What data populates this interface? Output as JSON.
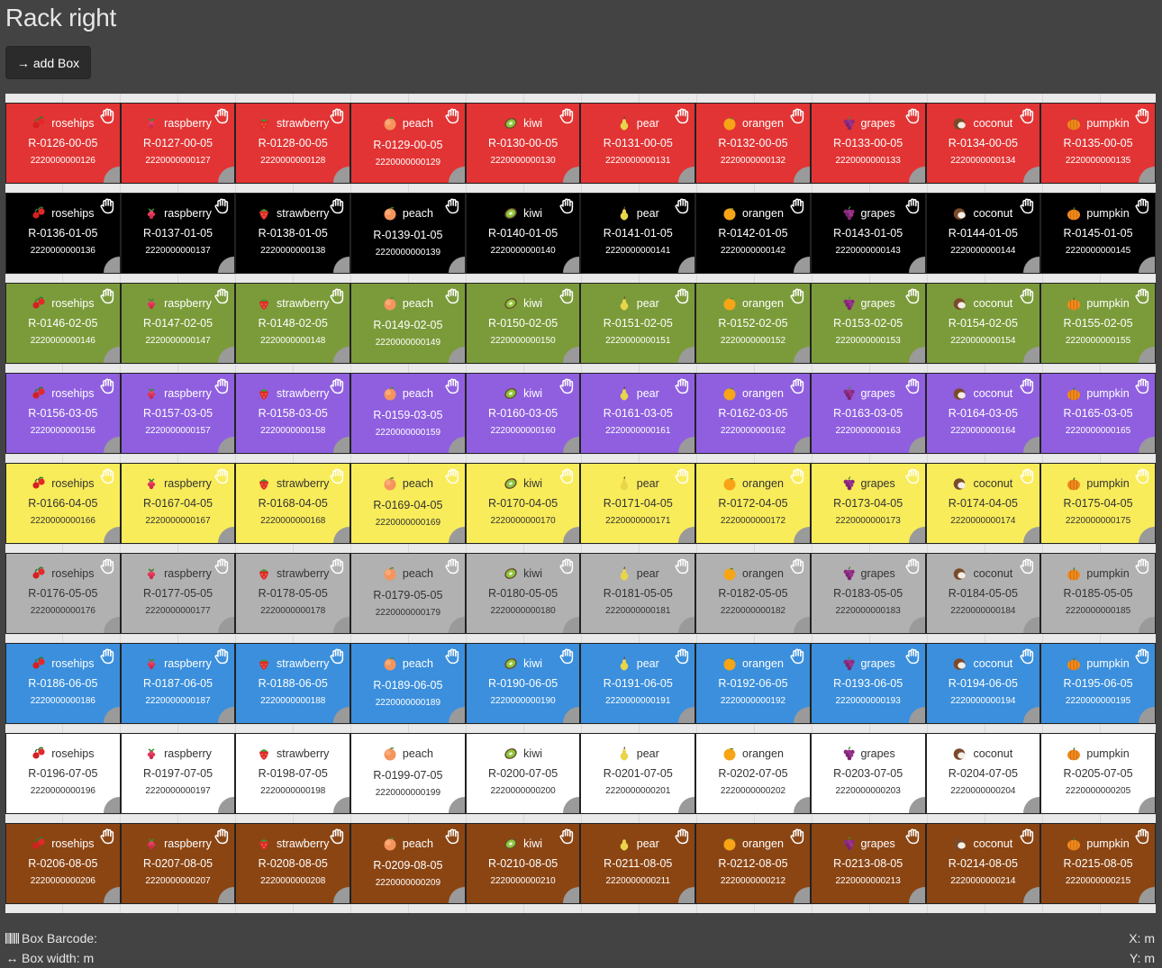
{
  "page": {
    "title": "Rack right"
  },
  "toolbar": {
    "add_box_label": "add Box",
    "add_box_icon": "arrow-right-icon"
  },
  "rack": {
    "fruits": [
      "rosehips",
      "raspberry",
      "strawberry",
      "peach",
      "kiwi",
      "pear",
      "orangen",
      "grapes",
      "coconut",
      "pumpkin"
    ],
    "fruit_icons": [
      "rosehips-icon",
      "raspberry-icon",
      "strawberry-icon",
      "peach-icon",
      "kiwi-icon",
      "pear-icon",
      "orange-icon",
      "grapes-icon",
      "coconut-icon",
      "pumpkin-icon"
    ],
    "rows": [
      {
        "color": "#e23434",
        "text_color": "#ffffff",
        "boxes": [
          {
            "code": "R-0126-00-05",
            "barcode": "2220000000126"
          },
          {
            "code": "R-0127-00-05",
            "barcode": "2220000000127"
          },
          {
            "code": "R-0128-00-05",
            "barcode": "2220000000128"
          },
          {
            "code": "R-0129-00-05",
            "barcode": "2220000000129"
          },
          {
            "code": "R-0130-00-05",
            "barcode": "2220000000130"
          },
          {
            "code": "R-0131-00-05",
            "barcode": "2220000000131"
          },
          {
            "code": "R-0132-00-05",
            "barcode": "2220000000132"
          },
          {
            "code": "R-0133-00-05",
            "barcode": "2220000000133"
          },
          {
            "code": "R-0134-00-05",
            "barcode": "2220000000134"
          },
          {
            "code": "R-0135-00-05",
            "barcode": "2220000000135"
          }
        ]
      },
      {
        "color": "#000000",
        "text_color": "#ffffff",
        "boxes": [
          {
            "code": "R-0136-01-05",
            "barcode": "2220000000136"
          },
          {
            "code": "R-0137-01-05",
            "barcode": "2220000000137"
          },
          {
            "code": "R-0138-01-05",
            "barcode": "2220000000138"
          },
          {
            "code": "R-0139-01-05",
            "barcode": "2220000000139"
          },
          {
            "code": "R-0140-01-05",
            "barcode": "2220000000140"
          },
          {
            "code": "R-0141-01-05",
            "barcode": "2220000000141"
          },
          {
            "code": "R-0142-01-05",
            "barcode": "2220000000142"
          },
          {
            "code": "R-0143-01-05",
            "barcode": "2220000000143"
          },
          {
            "code": "R-0144-01-05",
            "barcode": "2220000000144"
          },
          {
            "code": "R-0145-01-05",
            "barcode": "2220000000145"
          }
        ]
      },
      {
        "color": "#7b9b3a",
        "text_color": "#ffffff",
        "boxes": [
          {
            "code": "R-0146-02-05",
            "barcode": "2220000000146"
          },
          {
            "code": "R-0147-02-05",
            "barcode": "2220000000147"
          },
          {
            "code": "R-0148-02-05",
            "barcode": "2220000000148"
          },
          {
            "code": "R-0149-02-05",
            "barcode": "2220000000149"
          },
          {
            "code": "R-0150-02-05",
            "barcode": "2220000000150"
          },
          {
            "code": "R-0151-02-05",
            "barcode": "2220000000151"
          },
          {
            "code": "R-0152-02-05",
            "barcode": "2220000000152"
          },
          {
            "code": "R-0153-02-05",
            "barcode": "2220000000153"
          },
          {
            "code": "R-0154-02-05",
            "barcode": "2220000000154"
          },
          {
            "code": "R-0155-02-05",
            "barcode": "2220000000155"
          }
        ]
      },
      {
        "color": "#8f5fe0",
        "text_color": "#ffffff",
        "boxes": [
          {
            "code": "R-0156-03-05",
            "barcode": "2220000000156"
          },
          {
            "code": "R-0157-03-05",
            "barcode": "2220000000157"
          },
          {
            "code": "R-0158-03-05",
            "barcode": "2220000000158"
          },
          {
            "code": "R-0159-03-05",
            "barcode": "2220000000159"
          },
          {
            "code": "R-0160-03-05",
            "barcode": "2220000000160"
          },
          {
            "code": "R-0161-03-05",
            "barcode": "2220000000161"
          },
          {
            "code": "R-0162-03-05",
            "barcode": "2220000000162"
          },
          {
            "code": "R-0163-03-05",
            "barcode": "2220000000163"
          },
          {
            "code": "R-0164-03-05",
            "barcode": "2220000000164"
          },
          {
            "code": "R-0165-03-05",
            "barcode": "2220000000165"
          }
        ]
      },
      {
        "color": "#f9ec5a",
        "text_color": "#333333",
        "boxes": [
          {
            "code": "R-0166-04-05",
            "barcode": "2220000000166"
          },
          {
            "code": "R-0167-04-05",
            "barcode": "2220000000167"
          },
          {
            "code": "R-0168-04-05",
            "barcode": "2220000000168"
          },
          {
            "code": "R-0169-04-05",
            "barcode": "2220000000169"
          },
          {
            "code": "R-0170-04-05",
            "barcode": "2220000000170"
          },
          {
            "code": "R-0171-04-05",
            "barcode": "2220000000171"
          },
          {
            "code": "R-0172-04-05",
            "barcode": "2220000000172"
          },
          {
            "code": "R-0173-04-05",
            "barcode": "2220000000173"
          },
          {
            "code": "R-0174-04-05",
            "barcode": "2220000000174"
          },
          {
            "code": "R-0175-04-05",
            "barcode": "2220000000175"
          }
        ]
      },
      {
        "color": "#b1b1b1",
        "text_color": "#333333",
        "boxes": [
          {
            "code": "R-0176-05-05",
            "barcode": "2220000000176"
          },
          {
            "code": "R-0177-05-05",
            "barcode": "2220000000177"
          },
          {
            "code": "R-0178-05-05",
            "barcode": "2220000000178"
          },
          {
            "code": "R-0179-05-05",
            "barcode": "2220000000179"
          },
          {
            "code": "R-0180-05-05",
            "barcode": "2220000000180"
          },
          {
            "code": "R-0181-05-05",
            "barcode": "2220000000181"
          },
          {
            "code": "R-0182-05-05",
            "barcode": "2220000000182"
          },
          {
            "code": "R-0183-05-05",
            "barcode": "2220000000183"
          },
          {
            "code": "R-0184-05-05",
            "barcode": "2220000000184"
          },
          {
            "code": "R-0185-05-05",
            "barcode": "2220000000185"
          }
        ]
      },
      {
        "color": "#3b8fdc",
        "text_color": "#ffffff",
        "boxes": [
          {
            "code": "R-0186-06-05",
            "barcode": "2220000000186"
          },
          {
            "code": "R-0187-06-05",
            "barcode": "2220000000187"
          },
          {
            "code": "R-0188-06-05",
            "barcode": "2220000000188"
          },
          {
            "code": "R-0189-06-05",
            "barcode": "2220000000189"
          },
          {
            "code": "R-0190-06-05",
            "barcode": "2220000000190"
          },
          {
            "code": "R-0191-06-05",
            "barcode": "2220000000191"
          },
          {
            "code": "R-0192-06-05",
            "barcode": "2220000000192"
          },
          {
            "code": "R-0193-06-05",
            "barcode": "2220000000193"
          },
          {
            "code": "R-0194-06-05",
            "barcode": "2220000000194"
          },
          {
            "code": "R-0195-06-05",
            "barcode": "2220000000195"
          }
        ]
      },
      {
        "color": "#ffffff",
        "text_color": "#333333",
        "boxes": [
          {
            "code": "R-0196-07-05",
            "barcode": "2220000000196"
          },
          {
            "code": "R-0197-07-05",
            "barcode": "2220000000197"
          },
          {
            "code": "R-0198-07-05",
            "barcode": "2220000000198"
          },
          {
            "code": "R-0199-07-05",
            "barcode": "2220000000199"
          },
          {
            "code": "R-0200-07-05",
            "barcode": "2220000000200"
          },
          {
            "code": "R-0201-07-05",
            "barcode": "2220000000201"
          },
          {
            "code": "R-0202-07-05",
            "barcode": "2220000000202"
          },
          {
            "code": "R-0203-07-05",
            "barcode": "2220000000203"
          },
          {
            "code": "R-0204-07-05",
            "barcode": "2220000000204"
          },
          {
            "code": "R-0205-07-05",
            "barcode": "2220000000205"
          }
        ]
      },
      {
        "color": "#8b4513",
        "text_color": "#ffffff",
        "boxes": [
          {
            "code": "R-0206-08-05",
            "barcode": "2220000000206"
          },
          {
            "code": "R-0207-08-05",
            "barcode": "2220000000207"
          },
          {
            "code": "R-0208-08-05",
            "barcode": "2220000000208"
          },
          {
            "code": "R-0209-08-05",
            "barcode": "2220000000209"
          },
          {
            "code": "R-0210-08-05",
            "barcode": "2220000000210"
          },
          {
            "code": "R-0211-08-05",
            "barcode": "2220000000211"
          },
          {
            "code": "R-0212-08-05",
            "barcode": "2220000000212"
          },
          {
            "code": "R-0213-08-05",
            "barcode": "2220000000213"
          },
          {
            "code": "R-0214-08-05",
            "barcode": "2220000000214"
          },
          {
            "code": "R-0215-08-05",
            "barcode": "2220000000215"
          }
        ]
      }
    ]
  },
  "footer": {
    "barcode_label": "Box Barcode:",
    "width_label": "Box width: m",
    "x_label": "X: m",
    "y_label": "Y: m"
  }
}
